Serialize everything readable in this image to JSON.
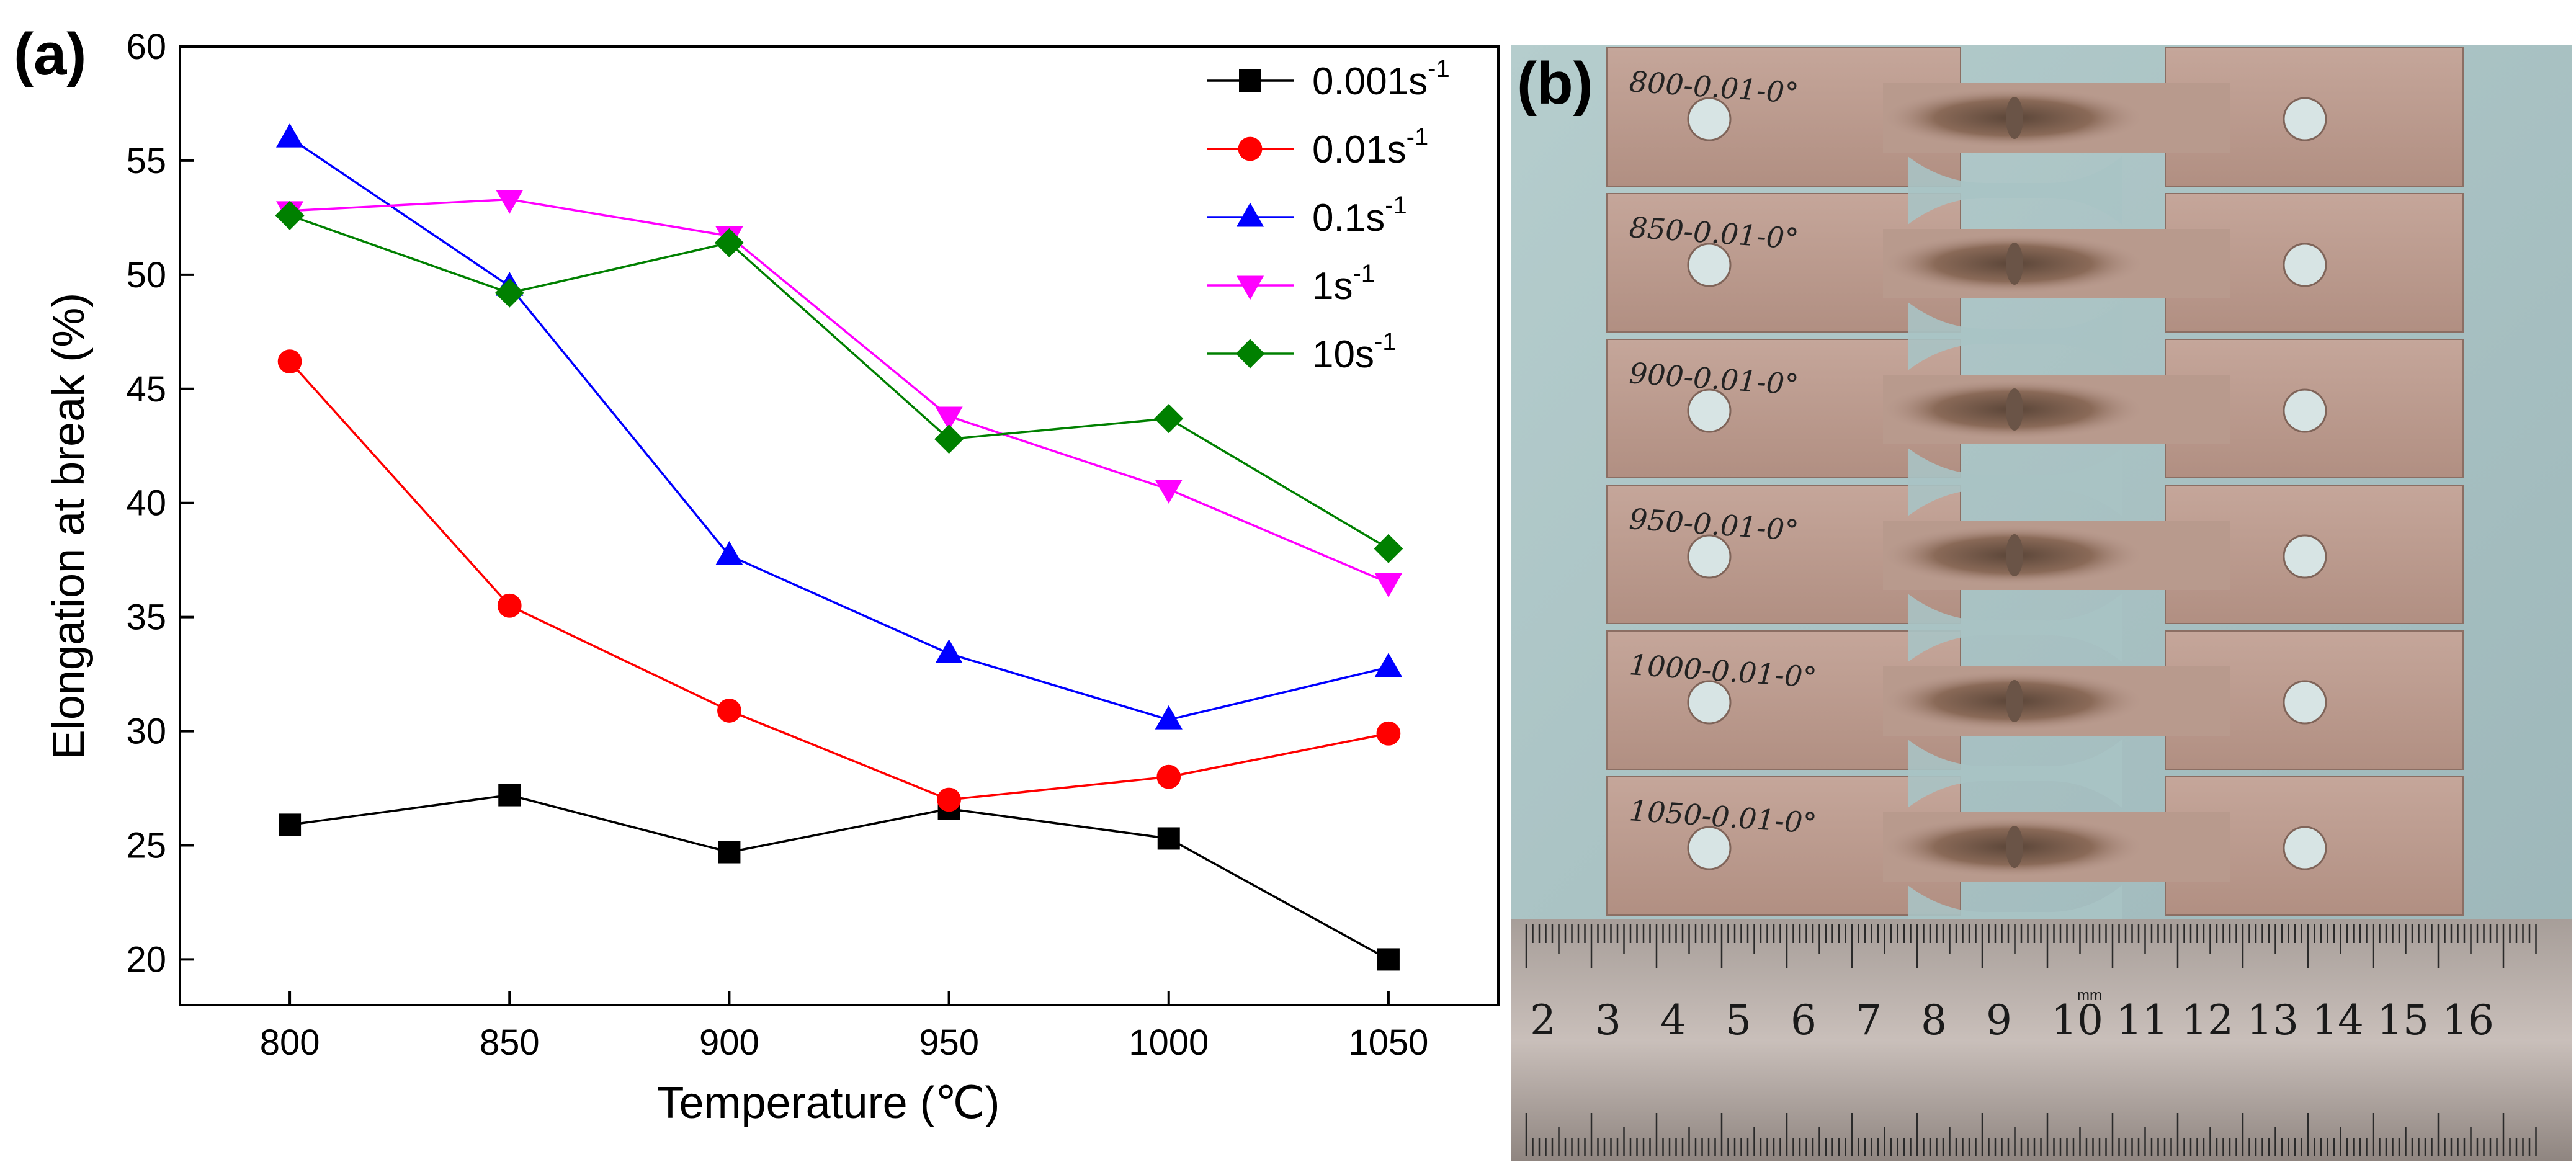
{
  "panel_a_label": "(a)",
  "panel_b_label": "(b)",
  "chart_data": {
    "type": "line",
    "title": "",
    "xlabel": "Temperature (℃)",
    "ylabel": "Elongation at break (%)",
    "x": [
      800,
      850,
      900,
      950,
      1000,
      1050
    ],
    "xlim": [
      775,
      1075
    ],
    "ylim": [
      18,
      60
    ],
    "xticks": [
      800,
      850,
      900,
      950,
      1000,
      1050
    ],
    "yticks": [
      20,
      25,
      30,
      35,
      40,
      45,
      50,
      55,
      60
    ],
    "grid": false,
    "legend_position": "top-right",
    "series": [
      {
        "name": "0.001s",
        "exponent": "-1",
        "color": "#000000",
        "marker": "square",
        "values": [
          25.9,
          27.2,
          24.7,
          26.6,
          25.3,
          20.0
        ]
      },
      {
        "name": "0.01s",
        "exponent": "-1",
        "color": "#ff0000",
        "marker": "circle",
        "values": [
          46.2,
          35.5,
          30.9,
          27.0,
          28.0,
          29.9
        ]
      },
      {
        "name": "0.1s",
        "exponent": "-1",
        "color": "#0000ff",
        "marker": "triangle-up",
        "values": [
          56.0,
          49.5,
          37.7,
          33.4,
          30.5,
          32.8
        ]
      },
      {
        "name": "1s",
        "exponent": "-1",
        "color": "#ff00ff",
        "marker": "triangle-down",
        "values": [
          52.8,
          53.3,
          51.7,
          43.8,
          40.6,
          36.5
        ]
      },
      {
        "name": "10s",
        "exponent": "-1",
        "color": "#008000",
        "marker": "diamond",
        "values": [
          52.6,
          49.2,
          51.4,
          42.8,
          43.7,
          38.0
        ]
      }
    ]
  },
  "photo": {
    "specimen_labels": [
      "800-0.01-0°",
      "850-0.01-0°",
      "900-0.01-0°",
      "950-0.01-0°",
      "1000-0.01-0°",
      "1050-0.01-0°"
    ],
    "ruler_numbers": [
      "2",
      "3",
      "4",
      "5",
      "6",
      "7",
      "8",
      "9",
      "10",
      "11",
      "12",
      "13",
      "14",
      "15",
      "16"
    ],
    "ruler_unit": "mm"
  }
}
